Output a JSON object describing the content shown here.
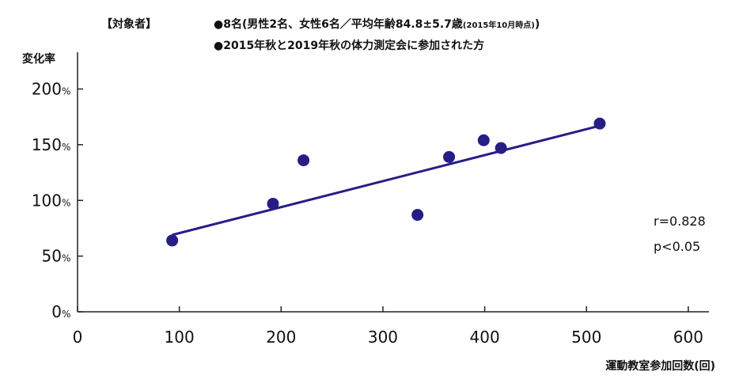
{
  "header": {
    "label": "【対象者】",
    "line1_main": "●8名(男性2名、女性6名／平均年齢84.8±5.7歳",
    "line1_small": "(2015年10月時点)",
    "line1_close": ")",
    "line2": "●2015年秋と2019年秋の体力測定会に参加された方"
  },
  "stats": {
    "r": "r=0.828",
    "p": "p<0.05"
  },
  "chart_data": {
    "type": "scatter",
    "xlabel": "運動教室参加回数(回)",
    "ylabel": "変化率",
    "xlim": [
      0,
      620
    ],
    "ylim": [
      0,
      225
    ],
    "x_ticks": [
      "0",
      "100",
      "200",
      "300",
      "400",
      "500",
      "600"
    ],
    "y_ticks": [
      "0%",
      "50%",
      "100%",
      "150%",
      "200%"
    ],
    "x": [
      93,
      192,
      222,
      334,
      365,
      399,
      416,
      513
    ],
    "y": [
      64,
      97,
      136,
      87,
      139,
      154,
      147,
      169
    ],
    "trendline": {
      "x": [
        93,
        513
      ],
      "y": [
        69,
        167
      ]
    },
    "point_color": "#261d88",
    "line_color": "#261d88",
    "grid": false
  }
}
